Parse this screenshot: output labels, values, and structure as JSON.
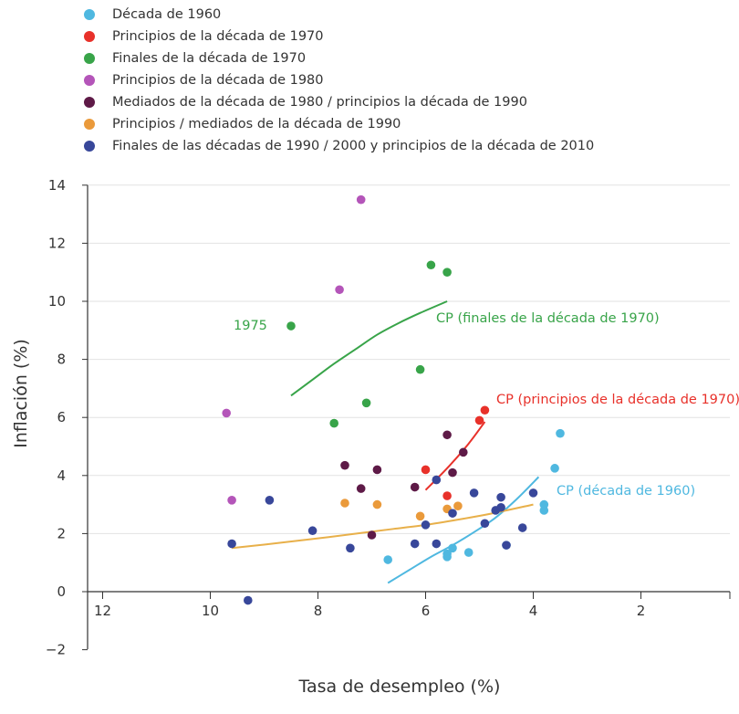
{
  "chart_data": {
    "type": "scatter",
    "xlabel": "Tasa de desempleo (%)",
    "ylabel": "Inflación (%)",
    "x_reversed": true,
    "xlim": [
      12.5,
      0.3
    ],
    "ylim": [
      -2,
      14
    ],
    "xticks": [
      12,
      10,
      8,
      6,
      4,
      2
    ],
    "yticks": [
      14,
      12,
      10,
      8,
      6,
      4,
      2,
      0,
      -2
    ],
    "grid": "horizontal",
    "legend_position": "top-left",
    "series": [
      {
        "name": "Década de 1960",
        "color": "#4fb8e0",
        "points": [
          [
            6.7,
            1.1
          ],
          [
            5.6,
            1.2
          ],
          [
            5.6,
            1.3
          ],
          [
            5.5,
            1.5
          ],
          [
            5.2,
            1.35
          ],
          [
            4.5,
            1.6
          ],
          [
            3.8,
            2.8
          ],
          [
            3.8,
            3.0
          ],
          [
            3.6,
            4.25
          ],
          [
            3.5,
            5.45
          ]
        ]
      },
      {
        "name": "Principios de la década de 1970",
        "color": "#e8312a",
        "points": [
          [
            6.0,
            4.2
          ],
          [
            5.6,
            3.3
          ],
          [
            5.0,
            5.9
          ],
          [
            4.9,
            6.25
          ]
        ]
      },
      {
        "name": "Finales de la década de 1970",
        "color": "#38a449",
        "points": [
          [
            8.5,
            9.15
          ],
          [
            7.7,
            5.8
          ],
          [
            7.1,
            6.5
          ],
          [
            6.1,
            7.65
          ],
          [
            5.9,
            11.25
          ],
          [
            5.6,
            11.0
          ]
        ]
      },
      {
        "name": "Principios de la década de 1980",
        "color": "#b455b9",
        "points": [
          [
            9.7,
            6.15
          ],
          [
            9.6,
            3.15
          ],
          [
            7.6,
            10.4
          ],
          [
            7.2,
            13.5
          ]
        ]
      },
      {
        "name": "Mediados de la década de 1980 / principios la década de 1990",
        "color": "#5e1a47",
        "points": [
          [
            7.5,
            4.35
          ],
          [
            7.2,
            3.55
          ],
          [
            7.0,
            1.95
          ],
          [
            6.9,
            4.2
          ],
          [
            6.2,
            3.6
          ],
          [
            5.6,
            5.4
          ],
          [
            5.5,
            4.1
          ],
          [
            5.3,
            4.8
          ]
        ]
      },
      {
        "name": "Principios / mediados de la década de 1990",
        "color": "#ea9a3b",
        "points": [
          [
            7.5,
            3.05
          ],
          [
            6.9,
            3.0
          ],
          [
            6.1,
            2.6
          ],
          [
            5.6,
            2.85
          ],
          [
            5.4,
            2.95
          ]
        ]
      },
      {
        "name": "Finales de las décadas de 1990 / 2000 y principios de la década de 2010",
        "color": "#38479a",
        "points": [
          [
            9.6,
            1.65
          ],
          [
            9.3,
            -0.3
          ],
          [
            8.9,
            3.15
          ],
          [
            8.1,
            2.1
          ],
          [
            7.4,
            1.5
          ],
          [
            6.2,
            1.65
          ],
          [
            6.0,
            2.3
          ],
          [
            5.8,
            1.65
          ],
          [
            5.8,
            3.85
          ],
          [
            5.5,
            2.7
          ],
          [
            5.1,
            3.4
          ],
          [
            4.9,
            2.35
          ],
          [
            4.7,
            2.8
          ],
          [
            4.6,
            2.9
          ],
          [
            4.6,
            3.25
          ],
          [
            4.5,
            1.6
          ],
          [
            4.2,
            2.2
          ],
          [
            4.0,
            3.4
          ]
        ]
      }
    ],
    "curves": [
      {
        "name": "CP (década de 1960)",
        "color": "#4fb8e0",
        "points": [
          [
            6.7,
            0.3
          ],
          [
            6.3,
            0.75
          ],
          [
            5.9,
            1.2
          ],
          [
            5.5,
            1.6
          ],
          [
            5.1,
            2.05
          ],
          [
            4.7,
            2.55
          ],
          [
            4.3,
            3.2
          ],
          [
            3.9,
            3.95
          ]
        ]
      },
      {
        "name": "CP (principios de la década de 1970)",
        "color": "#e8312a",
        "points": [
          [
            6.0,
            3.5
          ],
          [
            5.6,
            4.25
          ],
          [
            5.2,
            5.1
          ],
          [
            4.9,
            5.85
          ]
        ]
      },
      {
        "name": "CP (finales de la década de 1970)",
        "color": "#38a449",
        "points": [
          [
            8.5,
            6.75
          ],
          [
            8.1,
            7.3
          ],
          [
            7.7,
            7.85
          ],
          [
            7.3,
            8.35
          ],
          [
            6.9,
            8.85
          ],
          [
            6.5,
            9.25
          ],
          [
            6.1,
            9.6
          ],
          [
            5.6,
            10.0
          ]
        ]
      },
      {
        "name": "",
        "color": "#e8b04a",
        "points": [
          [
            9.6,
            1.5
          ],
          [
            9.0,
            1.62
          ],
          [
            8.4,
            1.75
          ],
          [
            7.8,
            1.88
          ],
          [
            7.2,
            2.02
          ],
          [
            6.6,
            2.16
          ],
          [
            6.0,
            2.3
          ],
          [
            5.4,
            2.48
          ],
          [
            4.8,
            2.68
          ],
          [
            4.0,
            3.0
          ]
        ]
      }
    ],
    "annotations": [
      {
        "text": "1975",
        "color": "#38a449"
      }
    ]
  }
}
